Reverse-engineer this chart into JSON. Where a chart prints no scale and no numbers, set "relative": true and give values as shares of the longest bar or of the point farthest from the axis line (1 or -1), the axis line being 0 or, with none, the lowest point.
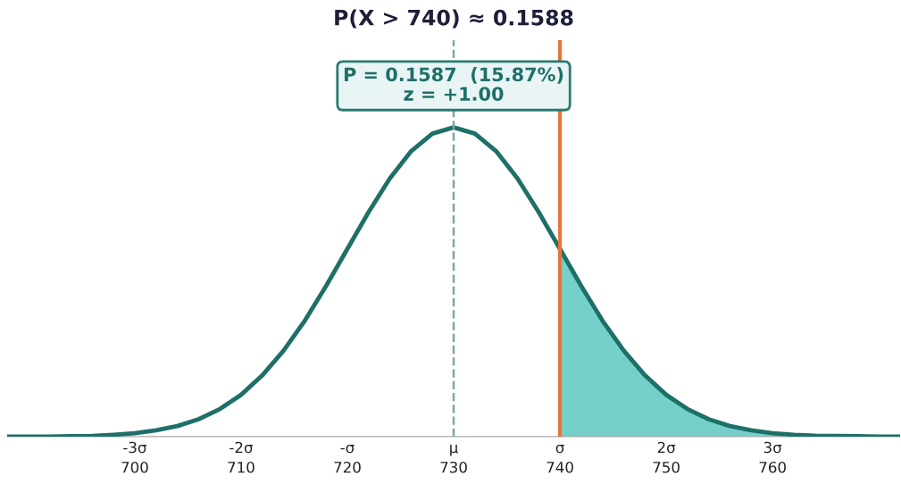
{
  "chart_data": {
    "type": "line",
    "title": "P(X > 740) ≈ 0.1588",
    "relative": true,
    "x": [
      688,
      690,
      692,
      694,
      696,
      698,
      700,
      702,
      704,
      706,
      708,
      710,
      712,
      714,
      716,
      718,
      720,
      722,
      724,
      726,
      728,
      730,
      732,
      734,
      736,
      738,
      740,
      742,
      744,
      746,
      748,
      750,
      752,
      754,
      756,
      758,
      760,
      762,
      764,
      766,
      768,
      770,
      772
    ],
    "series": [
      {
        "color": "#1f6f69",
        "values": [
          0,
          0,
          0,
          0.001,
          0.002,
          0.006,
          0.011,
          0.02,
          0.034,
          0.056,
          0.089,
          0.135,
          0.198,
          0.278,
          0.375,
          0.487,
          0.607,
          0.726,
          0.835,
          0.923,
          0.98,
          1,
          0.98,
          0.923,
          0.835,
          0.726,
          0.607,
          0.487,
          0.375,
          0.278,
          0.198,
          0.135,
          0.089,
          0.056,
          0.034,
          0.02,
          0.011,
          0.006,
          0.003,
          0.002,
          0.001,
          0,
          0
        ]
      },
      {
        "type": "area",
        "color": "#74d0c9",
        "x": [
          740,
          742,
          744,
          746,
          748,
          750,
          752,
          754,
          756,
          758,
          760,
          762,
          764,
          766,
          768,
          770,
          772
        ],
        "values": [
          0.607,
          0.487,
          0.375,
          0.278,
          0.198,
          0.135,
          0.089,
          0.056,
          0.034,
          0.02,
          0.011,
          0.006,
          0.003,
          0.002,
          0.001,
          0,
          0
        ]
      }
    ],
    "xlim": [
      688,
      772
    ],
    "xticks": [
      700,
      710,
      720,
      730,
      740,
      750,
      760
    ],
    "x2lim": [
      -4.2,
      4.2
    ],
    "x2ticks": [
      {
        "value": -3,
        "label": "-3σ"
      },
      {
        "value": -2,
        "label": "-2σ"
      },
      {
        "value": -1,
        "label": "-σ"
      },
      {
        "value": 0,
        "label": "μ"
      },
      {
        "value": 1,
        "label": "σ"
      },
      {
        "value": 2,
        "label": "2σ"
      },
      {
        "value": 3,
        "label": "3σ"
      }
    ],
    "ref_lines": [
      {
        "axis": "x",
        "value": 730,
        "color": "#7fa8a4",
        "line_style": "dashed"
      },
      {
        "axis": "x",
        "value": 740,
        "color": "#e8743b",
        "line_style": "solid"
      }
    ],
    "annotations": [
      "P = 0.1587  (15.87%)\nz = +1.00"
    ],
    "grid": false,
    "legend": false,
    "marker": "none"
  }
}
